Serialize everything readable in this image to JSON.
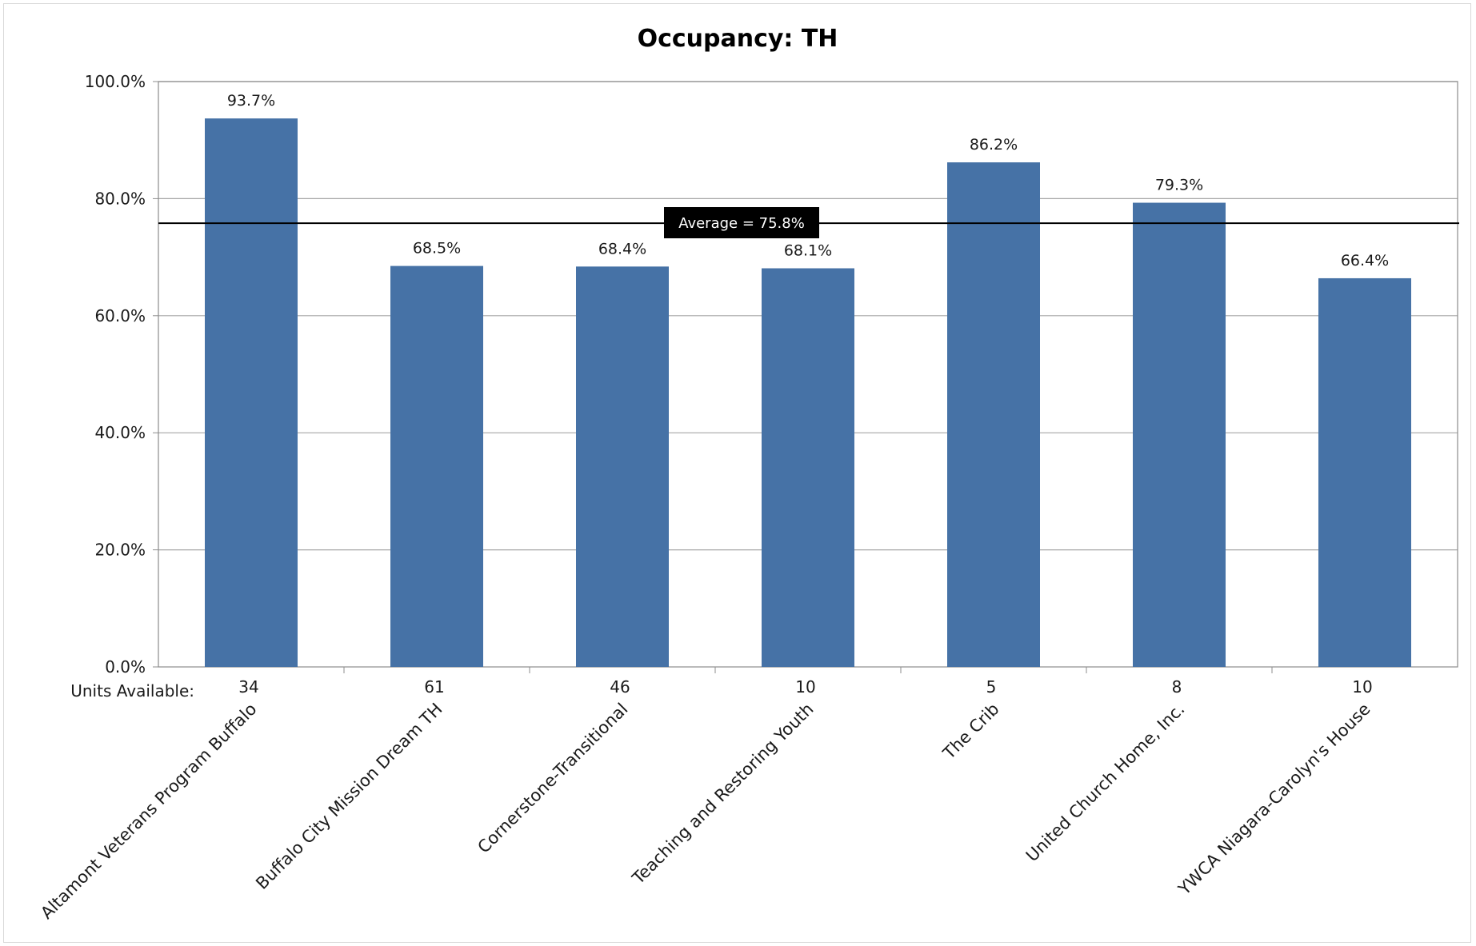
{
  "chart_data": {
    "type": "bar",
    "title": "Occupancy: TH",
    "categories": [
      "Altamont Veterans Program Buffalo",
      "Buffalo City Mission Dream TH",
      "Cornerstone-Transitional",
      "Teaching and Restoring Youth",
      "The Crib",
      "United Church Home, Inc.",
      "YWCA Niagara-Carolyn's House"
    ],
    "values": [
      93.7,
      68.5,
      68.4,
      68.1,
      86.2,
      79.3,
      66.4
    ],
    "data_labels": [
      "93.7%",
      "68.5%",
      "68.4%",
      "68.1%",
      "86.2%",
      "79.3%",
      "66.4%"
    ],
    "units_available_label": "Units Available:",
    "units_available": [
      "34",
      "61",
      "46",
      "10",
      "5",
      "8",
      "10"
    ],
    "y_ticks": [
      "0.0%",
      "20.0%",
      "40.0%",
      "60.0%",
      "80.0%",
      "100.0%"
    ],
    "ylim": [
      0,
      100
    ],
    "grid": true,
    "average": {
      "value": 75.8,
      "label": "Average = 75.8%"
    },
    "colors": {
      "bar": "#4672a6",
      "grid": "#a6a6a6",
      "average_line": "#000000",
      "average_box": "#000000"
    }
  }
}
